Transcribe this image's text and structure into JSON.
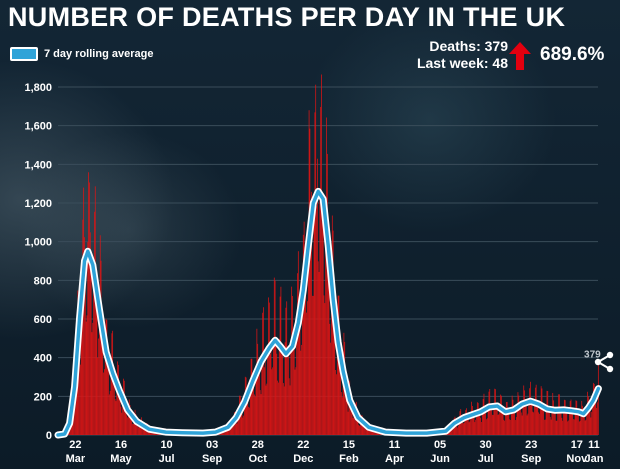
{
  "header": {
    "title": "NUMBER OF DEATHS PER DAY IN THE UK",
    "deaths_label": "Deaths: 379",
    "last_week_label": "Last week: 48",
    "change_pct": "689.6%"
  },
  "colors": {
    "bars": "#dd1515",
    "line": "#2fa3d8",
    "grid": "#3a4d5a",
    "arrow": "#e3000f"
  },
  "chart_data": {
    "type": "bar",
    "legend": {
      "label": "7 day rolling average",
      "position": "top-left"
    },
    "grid": true,
    "ylim": [
      0,
      1800
    ],
    "yticks": [
      0,
      200,
      400,
      600,
      800,
      1000,
      1200,
      1400,
      1600,
      1800
    ],
    "ytick_labels": [
      "0",
      "200",
      "400",
      "600",
      "800",
      "1,000",
      "1,200",
      "1,400",
      "1,600",
      "1,800"
    ],
    "x_range_days": [
      0,
      660
    ],
    "x_start_date": "2020-03-01",
    "xticks": [
      {
        "day": 21,
        "day_label": "22",
        "month_label": "Mar"
      },
      {
        "day": 76,
        "day_label": "16",
        "month_label": "May"
      },
      {
        "day": 131,
        "day_label": "10",
        "month_label": "Jul"
      },
      {
        "day": 186,
        "day_label": "03",
        "month_label": "Sep"
      },
      {
        "day": 241,
        "day_label": "28",
        "month_label": "Oct"
      },
      {
        "day": 296,
        "day_label": "22",
        "month_label": "Dec"
      },
      {
        "day": 351,
        "day_label": "15",
        "month_label": "Feb"
      },
      {
        "day": 406,
        "day_label": "11",
        "month_label": "Apr"
      },
      {
        "day": 461,
        "day_label": "05",
        "month_label": "Jun"
      },
      {
        "day": 516,
        "day_label": "30",
        "month_label": "Jul"
      },
      {
        "day": 571,
        "day_label": "23",
        "month_label": "Sep"
      },
      {
        "day": 626,
        "day_label": "17",
        "month_label": "Nov"
      },
      {
        "day": 681,
        "day_label": "11",
        "month_label": "Jan"
      }
    ],
    "rolling_average": [
      [
        0,
        0
      ],
      [
        8,
        5
      ],
      [
        14,
        60
      ],
      [
        20,
        250
      ],
      [
        26,
        600
      ],
      [
        32,
        900
      ],
      [
        36,
        950
      ],
      [
        42,
        880
      ],
      [
        50,
        650
      ],
      [
        58,
        430
      ],
      [
        66,
        320
      ],
      [
        74,
        230
      ],
      [
        84,
        130
      ],
      [
        95,
        70
      ],
      [
        110,
        30
      ],
      [
        130,
        15
      ],
      [
        150,
        12
      ],
      [
        175,
        10
      ],
      [
        190,
        15
      ],
      [
        205,
        40
      ],
      [
        215,
        90
      ],
      [
        225,
        170
      ],
      [
        235,
        280
      ],
      [
        245,
        380
      ],
      [
        255,
        450
      ],
      [
        262,
        490
      ],
      [
        268,
        460
      ],
      [
        275,
        420
      ],
      [
        283,
        460
      ],
      [
        290,
        580
      ],
      [
        296,
        750
      ],
      [
        302,
        980
      ],
      [
        308,
        1200
      ],
      [
        314,
        1260
      ],
      [
        320,
        1220
      ],
      [
        326,
        980
      ],
      [
        332,
        700
      ],
      [
        338,
        480
      ],
      [
        344,
        330
      ],
      [
        352,
        180
      ],
      [
        362,
        90
      ],
      [
        375,
        40
      ],
      [
        395,
        15
      ],
      [
        420,
        10
      ],
      [
        445,
        10
      ],
      [
        468,
        20
      ],
      [
        478,
        60
      ],
      [
        490,
        90
      ],
      [
        500,
        105
      ],
      [
        510,
        120
      ],
      [
        520,
        145
      ],
      [
        530,
        150
      ],
      [
        540,
        120
      ],
      [
        550,
        130
      ],
      [
        560,
        160
      ],
      [
        570,
        175
      ],
      [
        580,
        160
      ],
      [
        590,
        135
      ],
      [
        600,
        128
      ],
      [
        610,
        130
      ],
      [
        620,
        125
      ],
      [
        628,
        120
      ],
      [
        634,
        110
      ],
      [
        640,
        140
      ],
      [
        646,
        180
      ],
      [
        652,
        240
      ]
    ],
    "end_label": "379"
  }
}
